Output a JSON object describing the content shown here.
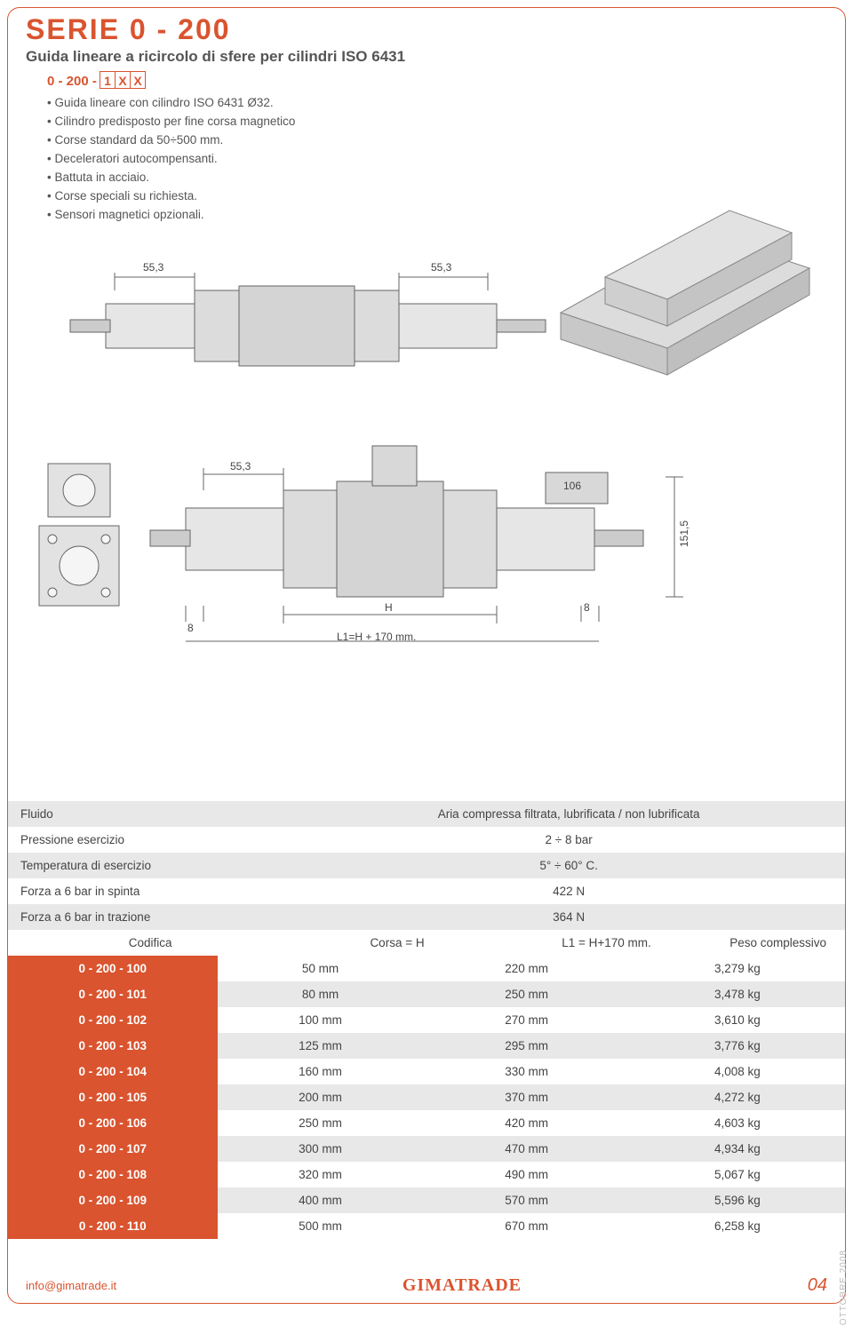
{
  "header": {
    "series_title": "SERIE  0 - 200",
    "subtitle": "Guida lineare a ricircolo di sfere per cilindri ISO 6431",
    "code_prefix": "0 - 200 - ",
    "code_boxes": [
      "1",
      "X",
      "X"
    ]
  },
  "bullets": [
    "Guida lineare con cilindro ISO 6431 Ø32.",
    "Cilindro predisposto per fine corsa magnetico",
    "Corse standard da 50÷500 mm.",
    "Deceleratori autocompensanti.",
    "Battuta in acciaio.",
    "Corse speciali su richiesta.",
    "Sensori magnetici opzionali."
  ],
  "drawing": {
    "dims": {
      "top_left": "55,3",
      "top_right": "55,3",
      "mid_left": "55,3",
      "mid_right_box": "106",
      "right_vertical": "151,5",
      "bottom_left_gap": "8",
      "bottom_right_gap": "8",
      "h_label": "H",
      "l1_formula": "L1=H + 170 mm."
    }
  },
  "specs": {
    "rows": [
      {
        "label": "Fluido",
        "value": "Aria compressa filtrata, lubrificata / non lubrificata",
        "shade": "gray"
      },
      {
        "label": "Pressione esercizio",
        "value": "2 ÷ 8 bar",
        "shade": "white"
      },
      {
        "label": "Temperatura di esercizio",
        "value": "5° ÷ 60° C.",
        "shade": "gray"
      },
      {
        "label": "Forza a 6 bar in spinta",
        "value": "422 N",
        "shade": "white"
      },
      {
        "label": "Forza a 6 bar in trazione",
        "value": "364 N",
        "shade": "gray"
      }
    ]
  },
  "table": {
    "headers": {
      "codifica": "Codifica",
      "corsa": "Corsa = H",
      "l1": "L1 = H+170 mm.",
      "peso": "Peso complessivo"
    },
    "rows": [
      {
        "code": "0 - 200 - 100",
        "corsa": "50 mm",
        "l1": "220 mm",
        "peso": "3,279 kg"
      },
      {
        "code": "0 - 200 - 101",
        "corsa": "80 mm",
        "l1": "250 mm",
        "peso": "3,478 kg"
      },
      {
        "code": "0 - 200 - 102",
        "corsa": "100 mm",
        "l1": "270 mm",
        "peso": "3,610 kg"
      },
      {
        "code": "0 - 200 - 103",
        "corsa": "125 mm",
        "l1": "295 mm",
        "peso": "3,776 kg"
      },
      {
        "code": "0 - 200 - 104",
        "corsa": "160 mm",
        "l1": "330 mm",
        "peso": "4,008 kg"
      },
      {
        "code": "0 - 200 - 105",
        "corsa": "200 mm",
        "l1": "370 mm",
        "peso": "4,272 kg"
      },
      {
        "code": "0 - 200 - 106",
        "corsa": "250 mm",
        "l1": "420 mm",
        "peso": "4,603 kg"
      },
      {
        "code": "0 - 200 - 107",
        "corsa": "300 mm",
        "l1": "470 mm",
        "peso": "4,934 kg"
      },
      {
        "code": "0 - 200 - 108",
        "corsa": "320 mm",
        "l1": "490 mm",
        "peso": "5,067 kg"
      },
      {
        "code": "0 - 200 - 109",
        "corsa": "400 mm",
        "l1": "570 mm",
        "peso": "5,596 kg"
      },
      {
        "code": "0 - 200 - 110",
        "corsa": "500 mm",
        "l1": "670 mm",
        "peso": "6,258 kg"
      }
    ]
  },
  "footer": {
    "email": "info@gimatrade.it",
    "brand": "GIMATRADE",
    "page": "04",
    "side_date": "OTTOBRE 2008"
  },
  "colors": {
    "accent": "#d9542f",
    "row_gray": "#e8e8e8",
    "row_white": "#ffffff",
    "text": "#444444"
  }
}
